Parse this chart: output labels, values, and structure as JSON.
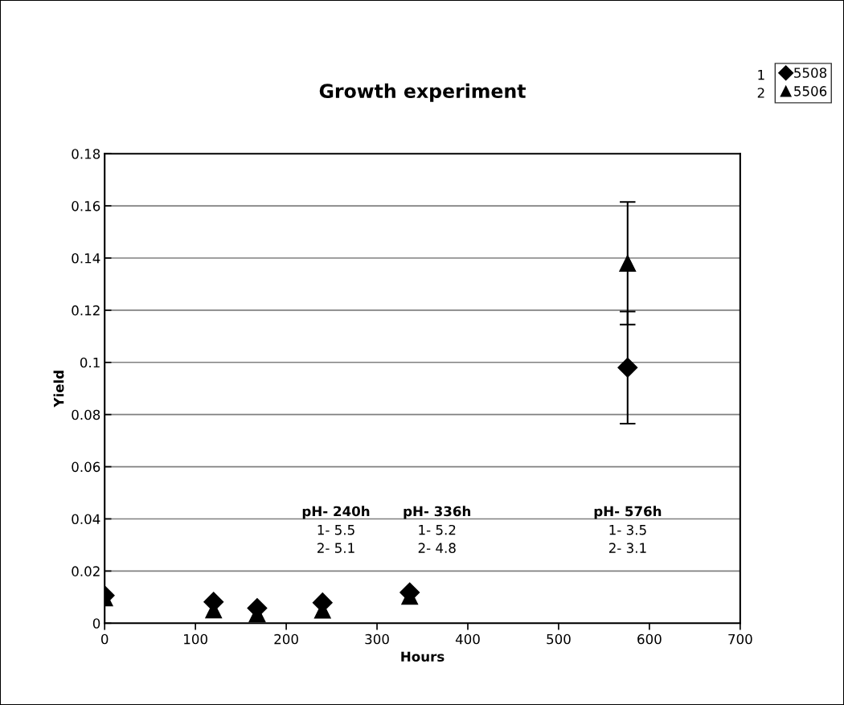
{
  "chart_data": {
    "type": "scatter",
    "title": "Growth experiment",
    "xlabel": "Hours",
    "ylabel": "Yield",
    "x": [
      0,
      120,
      168,
      240,
      336,
      576
    ],
    "series": [
      {
        "name": "5508",
        "color": "#000000",
        "marker": "diamond",
        "values": [
          0.0106,
          0.0082,
          0.0058,
          0.0079,
          0.0118,
          0.098
        ],
        "errors": [
          null,
          null,
          null,
          null,
          null,
          0.0215
        ]
      },
      {
        "name": "5506",
        "color": "#000000",
        "marker": "triangle",
        "values": [
          0.0097,
          0.0051,
          0.0036,
          0.005,
          0.0103,
          0.138
        ],
        "errors": [
          null,
          null,
          null,
          null,
          null,
          0.0235
        ]
      }
    ],
    "xlim": [
      0,
      700
    ],
    "xticks": [
      0,
      100,
      200,
      300,
      400,
      500,
      600,
      700
    ],
    "ylim": [
      0,
      0.18
    ],
    "yticks": [
      0,
      0.02,
      0.04,
      0.06,
      0.08,
      {
        "value": 0.1,
        "label": "0.1"
      },
      0.12,
      0.14,
      0.16,
      0.18
    ],
    "grid": "y",
    "legend": "top right",
    "annotations": [
      "1",
      "2",
      "pH- 240h",
      "1- 5.5\n2- 5.1",
      "pH- 336h",
      "1- 5.2\n2- 4.8",
      "pH- 576h",
      "1- 3.5\n2- 3.1"
    ]
  }
}
